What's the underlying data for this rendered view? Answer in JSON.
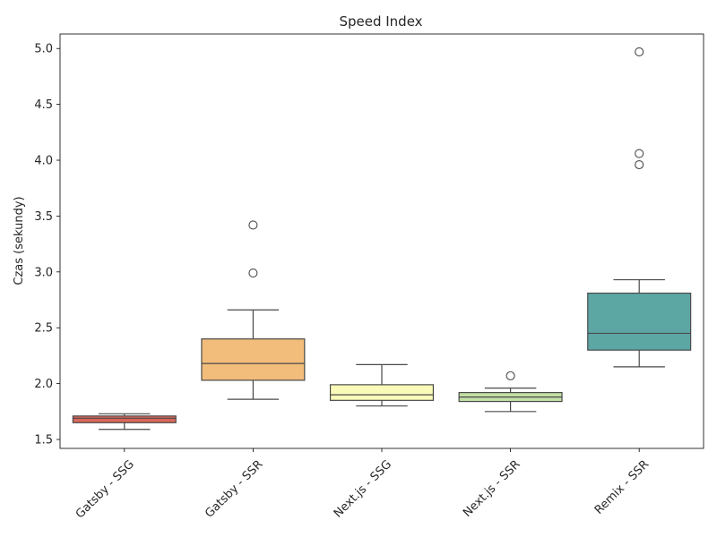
{
  "chart_data": {
    "type": "box",
    "title": "Speed Index",
    "xlabel": "",
    "ylabel": "Czas (sekundy)",
    "ylim": [
      1.42,
      5.13
    ],
    "yticks": [
      "1.5",
      "2.0",
      "2.5",
      "3.0",
      "3.5",
      "4.0",
      "4.5",
      "5.0"
    ],
    "grid": false,
    "categories": [
      "Gatsby - SSG",
      "Gatsby - SSR",
      "Next.js - SSG",
      "Next.js - SSR",
      "Remix - SSR"
    ],
    "boxes": [
      {
        "whisker_low": 1.59,
        "q1": 1.65,
        "median": 1.69,
        "q3": 1.71,
        "whisker_high": 1.73,
        "outliers": [],
        "color": "#d9665a"
      },
      {
        "whisker_low": 1.86,
        "q1": 2.03,
        "median": 2.18,
        "q3": 2.4,
        "whisker_high": 2.66,
        "outliers": [
          2.99,
          3.42
        ],
        "color": "#f2bc7a"
      },
      {
        "whisker_low": 1.8,
        "q1": 1.85,
        "median": 1.9,
        "q3": 1.99,
        "whisker_high": 2.17,
        "outliers": [],
        "color": "#fbfbb9"
      },
      {
        "whisker_low": 1.75,
        "q1": 1.84,
        "median": 1.88,
        "q3": 1.92,
        "whisker_high": 1.96,
        "outliers": [
          2.07
        ],
        "color": "#c3e0a5"
      },
      {
        "whisker_low": 2.15,
        "q1": 2.3,
        "median": 2.45,
        "q3": 2.81,
        "whisker_high": 2.93,
        "outliers": [
          3.96,
          4.06,
          4.97
        ],
        "color": "#5ca6a3"
      }
    ]
  }
}
